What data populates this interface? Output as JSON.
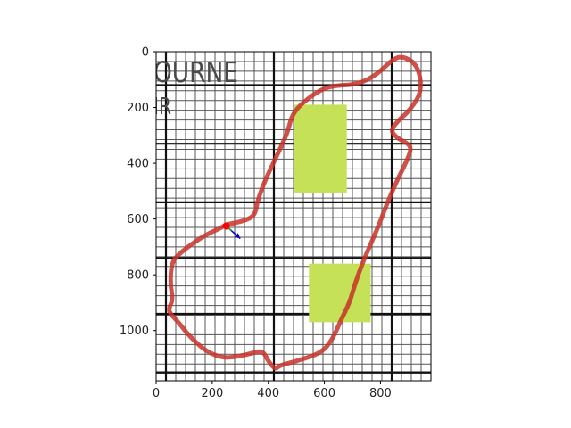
{
  "plot": {
    "x_ticks": [
      "0",
      "200",
      "400",
      "600",
      "800"
    ],
    "y_ticks": [
      "0",
      "200",
      "400",
      "600",
      "800",
      "1000"
    ],
    "xlim": [
      0,
      980
    ],
    "ylim": [
      1180,
      0
    ],
    "background_text": [
      "OURNE",
      "IR"
    ]
  },
  "track": {
    "color": "#c8322a",
    "path": [
      [
        250,
        620
      ],
      [
        290,
        612
      ],
      [
        315,
        605
      ],
      [
        340,
        595
      ],
      [
        355,
        575
      ],
      [
        360,
        540
      ],
      [
        385,
        470
      ],
      [
        420,
        395
      ],
      [
        455,
        320
      ],
      [
        470,
        285
      ],
      [
        488,
        215
      ],
      [
        560,
        152
      ],
      [
        620,
        122
      ],
      [
        720,
        118
      ],
      [
        790,
        80
      ],
      [
        840,
        30
      ],
      [
        875,
        15
      ],
      [
        925,
        40
      ],
      [
        945,
        100
      ],
      [
        940,
        160
      ],
      [
        895,
        220
      ],
      [
        870,
        240
      ],
      [
        835,
        282
      ],
      [
        860,
        310
      ],
      [
        900,
        330
      ],
      [
        910,
        350
      ],
      [
        890,
        400
      ],
      [
        860,
        460
      ],
      [
        825,
        540
      ],
      [
        795,
        620
      ],
      [
        765,
        690
      ],
      [
        735,
        760
      ],
      [
        710,
        830
      ],
      [
        690,
        900
      ],
      [
        660,
        960
      ],
      [
        630,
        1030
      ],
      [
        590,
        1080
      ],
      [
        500,
        1110
      ],
      [
        440,
        1125
      ],
      [
        425,
        1140
      ],
      [
        400,
        1110
      ],
      [
        380,
        1070
      ],
      [
        330,
        1085
      ],
      [
        250,
        1100
      ],
      [
        200,
        1085
      ],
      [
        160,
        1060
      ],
      [
        110,
        1010
      ],
      [
        80,
        970
      ],
      [
        50,
        940
      ],
      [
        45,
        920
      ],
      [
        60,
        890
      ],
      [
        50,
        830
      ],
      [
        55,
        760
      ],
      [
        75,
        730
      ],
      [
        140,
        680
      ],
      [
        190,
        650
      ],
      [
        225,
        635
      ],
      [
        250,
        620
      ]
    ]
  },
  "obstacles": [
    {
      "x0": 490,
      "x1": 680,
      "y0": 190,
      "y1": 505,
      "color": "#c4e157"
    },
    {
      "x0": 545,
      "x1": 765,
      "y0": 760,
      "y1": 970,
      "color": "#c4e157"
    }
  ],
  "agent": {
    "position": [
      250,
      625
    ],
    "heading_end": [
      300,
      670
    ],
    "marker_color": "#ff0000",
    "arrow_color": "#0000cc"
  }
}
